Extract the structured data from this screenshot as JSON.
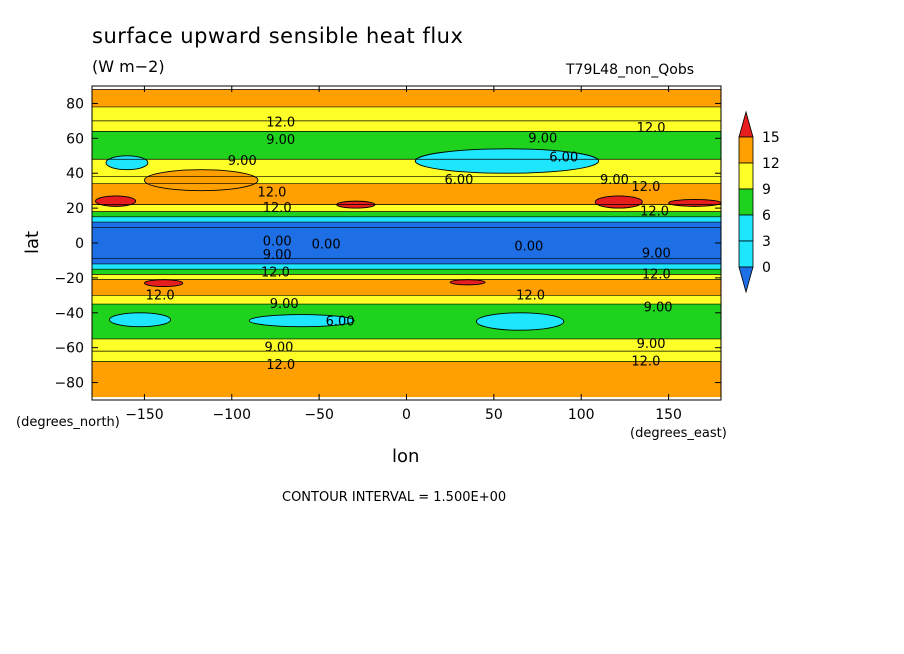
{
  "chart_data": {
    "type": "heatmap",
    "title": "surface upward sensible heat flux",
    "units": "(W m−2)",
    "run_label": "T79L48_non_Qobs",
    "xlabel": "lon",
    "ylabel": "lat",
    "x_unit_label": "(degrees_east)",
    "y_unit_label": "(degrees_north)",
    "xlim": [
      -180,
      180
    ],
    "ylim": [
      -90,
      90
    ],
    "x_ticks": [
      -150,
      -100,
      -50,
      0,
      50,
      100,
      150
    ],
    "y_ticks": [
      -80,
      -60,
      -40,
      -20,
      0,
      20,
      40,
      60,
      80
    ],
    "colorbar": {
      "levels": [
        0,
        3,
        6,
        9,
        12,
        15
      ],
      "tick_labels": [
        "0",
        "3",
        "6",
        "9",
        "12",
        "15"
      ],
      "colors": [
        "#1e6fe6",
        "#1ee6ff",
        "#1ed21e",
        "#ffff28",
        "#ffa000",
        "#e61e1e"
      ]
    },
    "zonal_bands": [
      {
        "lat_from": 78,
        "lat_to": 88,
        "value": 12.5
      },
      {
        "lat_from": 70,
        "lat_to": 78,
        "value": 10.5
      },
      {
        "lat_from": 64,
        "lat_to": 70,
        "value": 9.5
      },
      {
        "lat_from": 48,
        "lat_to": 64,
        "value": 7.0
      },
      {
        "lat_from": 38,
        "lat_to": 48,
        "value": 9.5
      },
      {
        "lat_from": 34,
        "lat_to": 38,
        "value": 10.5
      },
      {
        "lat_from": 22,
        "lat_to": 34,
        "value": 12.8
      },
      {
        "lat_from": 18,
        "lat_to": 22,
        "value": 10.5
      },
      {
        "lat_from": 15,
        "lat_to": 18,
        "value": 7.5
      },
      {
        "lat_from": 12,
        "lat_to": 15,
        "value": 4.5
      },
      {
        "lat_from": 9,
        "lat_to": 12,
        "value": 2.0
      },
      {
        "lat_from": -9,
        "lat_to": 9,
        "value": 1.0
      },
      {
        "lat_from": -12,
        "lat_to": -9,
        "value": 2.0
      },
      {
        "lat_from": -15,
        "lat_to": -12,
        "value": 4.5
      },
      {
        "lat_from": -18,
        "lat_to": -15,
        "value": 7.5
      },
      {
        "lat_from": -21,
        "lat_to": -18,
        "value": 10.5
      },
      {
        "lat_from": -30,
        "lat_to": -21,
        "value": 12.8
      },
      {
        "lat_from": -35,
        "lat_to": -30,
        "value": 10.5
      },
      {
        "lat_from": -55,
        "lat_to": -35,
        "value": 7.0
      },
      {
        "lat_from": -62,
        "lat_to": -55,
        "value": 9.5
      },
      {
        "lat_from": -68,
        "lat_to": -62,
        "value": 10.5
      },
      {
        "lat_from": -88,
        "lat_to": -68,
        "value": 12.5
      }
    ],
    "features": [
      {
        "kind": "max",
        "lon_from": -178,
        "lon_to": -155,
        "lat_from": 21,
        "lat_to": 27,
        "value": 15.5
      },
      {
        "kind": "max",
        "lon_from": -40,
        "lon_to": -18,
        "lat_from": 20,
        "lat_to": 24,
        "value": 15.5
      },
      {
        "kind": "max",
        "lon_from": 108,
        "lon_to": 135,
        "lat_from": 20,
        "lat_to": 27,
        "value": 15.5
      },
      {
        "kind": "max",
        "lon_from": 150,
        "lon_to": 180,
        "lat_from": 21,
        "lat_to": 25,
        "value": 15.5
      },
      {
        "kind": "max",
        "lon_from": -150,
        "lon_to": -128,
        "lat_from": -25,
        "lat_to": -21,
        "value": 15.5
      },
      {
        "kind": "max",
        "lon_from": 25,
        "lon_to": 45,
        "lat_from": -24,
        "lat_to": -21,
        "value": 15.5
      },
      {
        "kind": "min",
        "lon_from": -172,
        "lon_to": -148,
        "lat_from": 42,
        "lat_to": 50,
        "value": 4.5
      },
      {
        "kind": "min",
        "lon_from": 5,
        "lon_to": 110,
        "lat_from": 40,
        "lat_to": 54,
        "value": 4.5
      },
      {
        "kind": "min",
        "lon_from": -170,
        "lon_to": -135,
        "lat_from": -48,
        "lat_to": -40,
        "value": 4.5
      },
      {
        "kind": "min",
        "lon_from": -90,
        "lon_to": -30,
        "lat_from": -48,
        "lat_to": -41,
        "value": 4.5
      },
      {
        "kind": "min",
        "lon_from": 40,
        "lon_to": 90,
        "lat_from": -50,
        "lat_to": -40,
        "value": 4.5
      },
      {
        "kind": "high",
        "lon_from": -150,
        "lon_to": -85,
        "lat_from": 30,
        "lat_to": 42,
        "value": 12.5
      }
    ],
    "contour_labels": [
      {
        "text": "12.0",
        "lon": -72,
        "lat": 69
      },
      {
        "text": "9.00",
        "lon": -72,
        "lat": 59
      },
      {
        "text": "9.00",
        "lon": -94,
        "lat": 47
      },
      {
        "text": "12.0",
        "lon": -77,
        "lat": 29
      },
      {
        "text": "12.0",
        "lon": -74,
        "lat": 20
      },
      {
        "text": "0.00",
        "lon": -74,
        "lat": 1
      },
      {
        "text": "0.00",
        "lon": -46,
        "lat": -1
      },
      {
        "text": "9.00",
        "lon": -74,
        "lat": -7
      },
      {
        "text": "12.0",
        "lon": -75,
        "lat": -17
      },
      {
        "text": "12.0",
        "lon": -141,
        "lat": -30
      },
      {
        "text": "9.00",
        "lon": -70,
        "lat": -35
      },
      {
        "text": "6.00",
        "lon": -38,
        "lat": -45
      },
      {
        "text": "9.00",
        "lon": -73,
        "lat": -60
      },
      {
        "text": "12.0",
        "lon": -72,
        "lat": -70
      },
      {
        "text": "9.00",
        "lon": 78,
        "lat": 60
      },
      {
        "text": "6.00",
        "lon": 90,
        "lat": 49
      },
      {
        "text": "6.00",
        "lon": 30,
        "lat": 36
      },
      {
        "text": "9.00",
        "lon": 119,
        "lat": 36
      },
      {
        "text": "12.0",
        "lon": 137,
        "lat": 32
      },
      {
        "text": "12.0",
        "lon": 140,
        "lat": 66
      },
      {
        "text": "0.00",
        "lon": 70,
        "lat": -2
      },
      {
        "text": "12.0",
        "lon": 71,
        "lat": -30
      },
      {
        "text": "9.00",
        "lon": 144,
        "lat": -37
      },
      {
        "text": "9.00",
        "lon": 140,
        "lat": -58
      },
      {
        "text": "12.0",
        "lon": 137,
        "lat": -68
      },
      {
        "text": "12.0",
        "lon": 142,
        "lat": 18
      },
      {
        "text": "9.00",
        "lon": 143,
        "lat": -6
      },
      {
        "text": "12.0",
        "lon": 143,
        "lat": -18
      }
    ],
    "grid": false,
    "legend_placement": "right colorbar",
    "contour_interval_text": "CONTOUR INTERVAL = 1.500E+00"
  }
}
